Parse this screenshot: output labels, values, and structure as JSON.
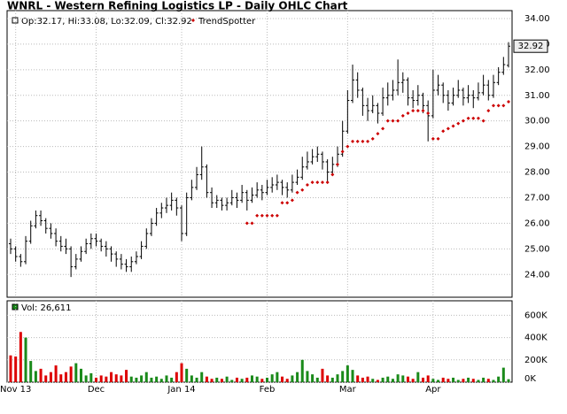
{
  "chart_data": {
    "type": "ohlc",
    "title": "WNRL - Western Refining Logistics LP - Daily OHLC Chart",
    "legend_text": "Op:32.17, Hi:33.08, Lo:32.09, Cl:32.92",
    "volume_text": "Vol: 26,611",
    "grid": true,
    "bar_color": "#000000",
    "categories": [
      null,
      "Nov 13",
      null,
      null,
      null,
      null,
      null,
      null,
      null,
      null,
      null,
      null,
      null,
      null,
      null,
      null,
      null,
      "Dec",
      null,
      null,
      null,
      null,
      null,
      null,
      null,
      null,
      null,
      null,
      null,
      null,
      null,
      null,
      null,
      null,
      "Jan 14",
      null,
      null,
      null,
      null,
      null,
      null,
      null,
      null,
      null,
      null,
      null,
      null,
      null,
      null,
      null,
      null,
      "Feb",
      null,
      null,
      null,
      null,
      null,
      null,
      null,
      null,
      null,
      null,
      null,
      null,
      null,
      null,
      null,
      "Mar",
      null,
      null,
      null,
      null,
      null,
      null,
      null,
      null,
      null,
      null,
      null,
      null,
      null,
      null,
      null,
      null,
      "Apr",
      null,
      null,
      null,
      null,
      null,
      null,
      null,
      null,
      null,
      null,
      null,
      null,
      null,
      null,
      null
    ],
    "ohlc": [
      [
        25.2,
        25.4,
        24.8,
        25.0
      ],
      [
        25.0,
        25.1,
        24.5,
        24.7
      ],
      [
        24.7,
        24.8,
        24.3,
        24.5
      ],
      [
        24.5,
        25.5,
        24.4,
        25.3
      ],
      [
        25.3,
        26.1,
        25.2,
        25.9
      ],
      [
        25.9,
        26.5,
        25.8,
        26.3
      ],
      [
        26.3,
        26.5,
        25.9,
        26.1
      ],
      [
        26.1,
        26.2,
        25.6,
        25.8
      ],
      [
        25.8,
        26.0,
        25.4,
        25.6
      ],
      [
        25.6,
        25.8,
        25.1,
        25.3
      ],
      [
        25.3,
        25.5,
        24.9,
        25.1
      ],
      [
        25.1,
        25.4,
        24.8,
        25.0
      ],
      [
        25.0,
        25.1,
        23.9,
        24.3
      ],
      [
        24.3,
        24.8,
        24.2,
        24.6
      ],
      [
        24.6,
        25.1,
        24.5,
        24.9
      ],
      [
        24.9,
        25.4,
        24.8,
        25.2
      ],
      [
        25.2,
        25.6,
        25.0,
        25.4
      ],
      [
        25.4,
        25.6,
        25.1,
        25.3
      ],
      [
        25.3,
        25.4,
        24.9,
        25.1
      ],
      [
        25.1,
        25.3,
        24.7,
        25.0
      ],
      [
        25.0,
        25.1,
        24.5,
        24.8
      ],
      [
        24.8,
        24.9,
        24.3,
        24.6
      ],
      [
        24.6,
        24.8,
        24.2,
        24.4
      ],
      [
        24.4,
        24.6,
        24.1,
        24.3
      ],
      [
        24.3,
        24.7,
        24.1,
        24.5
      ],
      [
        24.5,
        24.9,
        24.4,
        24.7
      ],
      [
        24.7,
        25.3,
        24.6,
        25.1
      ],
      [
        25.1,
        25.8,
        25.0,
        25.6
      ],
      [
        25.6,
        26.2,
        25.5,
        26.0
      ],
      [
        26.0,
        26.6,
        25.9,
        26.4
      ],
      [
        26.4,
        26.8,
        26.2,
        26.6
      ],
      [
        26.6,
        27.0,
        26.4,
        26.7
      ],
      [
        26.7,
        27.2,
        26.5,
        26.9
      ],
      [
        26.9,
        27.0,
        26.3,
        26.6
      ],
      [
        26.6,
        26.7,
        25.3,
        25.6
      ],
      [
        25.6,
        27.2,
        25.5,
        27.0
      ],
      [
        27.0,
        27.7,
        26.9,
        27.4
      ],
      [
        27.4,
        28.2,
        27.3,
        27.9
      ],
      [
        27.9,
        29.0,
        27.7,
        28.2
      ],
      [
        28.2,
        28.3,
        27.0,
        27.2
      ],
      [
        27.2,
        27.4,
        26.6,
        26.8
      ],
      [
        26.8,
        27.1,
        26.6,
        26.9
      ],
      [
        26.9,
        27.0,
        26.5,
        26.7
      ],
      [
        26.7,
        27.0,
        26.5,
        26.8
      ],
      [
        26.8,
        27.3,
        26.7,
        27.0
      ],
      [
        27.0,
        27.2,
        26.6,
        26.9
      ],
      [
        26.9,
        27.5,
        26.8,
        27.2
      ],
      [
        27.2,
        27.3,
        26.5,
        26.9
      ],
      [
        26.9,
        27.4,
        26.8,
        27.1
      ],
      [
        27.1,
        27.6,
        27.0,
        27.3
      ],
      [
        27.3,
        27.5,
        26.9,
        27.2
      ],
      [
        27.2,
        27.7,
        27.1,
        27.4
      ],
      [
        27.4,
        27.8,
        27.2,
        27.5
      ],
      [
        27.5,
        27.9,
        27.3,
        27.6
      ],
      [
        27.6,
        27.7,
        27.1,
        27.4
      ],
      [
        27.4,
        27.6,
        27.0,
        27.3
      ],
      [
        27.3,
        27.9,
        27.2,
        27.6
      ],
      [
        27.6,
        28.1,
        27.5,
        27.8
      ],
      [
        27.8,
        28.6,
        27.7,
        28.2
      ],
      [
        28.2,
        28.8,
        28.1,
        28.4
      ],
      [
        28.4,
        28.9,
        28.3,
        28.6
      ],
      [
        28.6,
        29.0,
        28.4,
        28.7
      ],
      [
        28.7,
        28.8,
        28.1,
        28.4
      ],
      [
        28.4,
        28.5,
        27.6,
        28.0
      ],
      [
        28.0,
        28.6,
        27.9,
        28.3
      ],
      [
        28.3,
        29.0,
        28.2,
        28.7
      ],
      [
        28.7,
        30.0,
        28.6,
        29.6
      ],
      [
        29.6,
        31.2,
        29.5,
        30.8
      ],
      [
        30.8,
        32.2,
        30.7,
        31.6
      ],
      [
        31.6,
        31.9,
        30.9,
        31.2
      ],
      [
        31.2,
        31.3,
        30.2,
        30.6
      ],
      [
        30.6,
        30.9,
        30.0,
        30.4
      ],
      [
        30.4,
        31.0,
        30.3,
        30.6
      ],
      [
        30.6,
        30.7,
        29.9,
        30.3
      ],
      [
        30.3,
        31.3,
        30.2,
        30.9
      ],
      [
        30.9,
        31.5,
        30.6,
        31.0
      ],
      [
        31.0,
        31.6,
        30.8,
        31.2
      ],
      [
        31.2,
        32.4,
        31.0,
        31.5
      ],
      [
        31.5,
        31.9,
        31.1,
        31.6
      ],
      [
        31.6,
        31.7,
        30.6,
        30.9
      ],
      [
        30.9,
        31.2,
        30.5,
        30.8
      ],
      [
        30.8,
        31.4,
        30.6,
        31.0
      ],
      [
        31.0,
        31.1,
        30.3,
        30.6
      ],
      [
        30.6,
        30.8,
        29.2,
        30.2
      ],
      [
        30.2,
        32.0,
        30.1,
        31.2
      ],
      [
        31.2,
        31.8,
        31.0,
        31.4
      ],
      [
        31.4,
        31.5,
        30.7,
        31.0
      ],
      [
        31.0,
        31.2,
        30.4,
        30.7
      ],
      [
        30.7,
        31.3,
        30.6,
        31.0
      ],
      [
        31.0,
        31.6,
        30.9,
        31.2
      ],
      [
        31.2,
        31.3,
        30.6,
        30.9
      ],
      [
        30.9,
        31.4,
        30.7,
        31.0
      ],
      [
        31.0,
        31.2,
        30.5,
        30.9
      ],
      [
        30.9,
        31.5,
        30.8,
        31.1
      ],
      [
        31.1,
        31.8,
        31.0,
        31.4
      ],
      [
        31.4,
        31.6,
        30.8,
        31.0
      ],
      [
        31.0,
        31.8,
        30.9,
        31.5
      ],
      [
        31.5,
        32.1,
        31.4,
        31.9
      ],
      [
        31.9,
        32.5,
        31.8,
        32.2
      ],
      [
        32.17,
        33.08,
        32.09,
        32.92
      ]
    ],
    "trendspotter": {
      "name": "TrendSpotter",
      "color": "#cc0000",
      "values": [
        null,
        null,
        null,
        null,
        null,
        null,
        null,
        null,
        null,
        null,
        null,
        null,
        null,
        null,
        null,
        null,
        null,
        null,
        null,
        null,
        null,
        null,
        null,
        null,
        null,
        null,
        null,
        null,
        null,
        null,
        null,
        null,
        null,
        null,
        null,
        null,
        null,
        null,
        null,
        null,
        null,
        null,
        null,
        null,
        null,
        null,
        null,
        26.0,
        26.0,
        26.3,
        26.3,
        26.3,
        26.3,
        26.3,
        26.8,
        26.8,
        26.9,
        27.2,
        27.3,
        27.5,
        27.6,
        27.6,
        27.6,
        27.6,
        27.9,
        28.3,
        28.8,
        29.0,
        29.2,
        29.2,
        29.2,
        29.2,
        29.3,
        29.5,
        29.7,
        30.0,
        30.0,
        30.0,
        30.2,
        30.3,
        30.4,
        30.4,
        30.4,
        30.3,
        29.3,
        29.3,
        29.6,
        29.7,
        29.8,
        29.9,
        30.0,
        30.1,
        30.1,
        30.1,
        30.0,
        30.4,
        30.6,
        30.6,
        30.6,
        30.75
      ]
    },
    "volume": {
      "up_color": "#1a8a1a",
      "down_color": "#dd0000",
      "values": [
        240000,
        230000,
        450000,
        400000,
        190000,
        100000,
        120000,
        60000,
        90000,
        150000,
        70000,
        90000,
        140000,
        170000,
        120000,
        60000,
        80000,
        40000,
        60000,
        50000,
        90000,
        70000,
        60000,
        110000,
        50000,
        40000,
        60000,
        90000,
        40000,
        50000,
        30000,
        60000,
        40000,
        90000,
        170000,
        120000,
        60000,
        40000,
        90000,
        50000,
        30000,
        40000,
        30000,
        50000,
        20000,
        40000,
        30000,
        40000,
        60000,
        50000,
        30000,
        40000,
        70000,
        90000,
        50000,
        30000,
        60000,
        90000,
        200000,
        100000,
        70000,
        40000,
        120000,
        60000,
        40000,
        70000,
        100000,
        150000,
        110000,
        60000,
        40000,
        50000,
        30000,
        20000,
        40000,
        50000,
        30000,
        70000,
        60000,
        50000,
        30000,
        90000,
        40000,
        60000,
        30000,
        20000,
        40000,
        30000,
        40000,
        20000,
        30000,
        40000,
        30000,
        20000,
        40000,
        30000,
        20000,
        50000,
        130000,
        26611
      ]
    },
    "ylim": [
      23.11,
      34.31
    ],
    "yticks": [
      {
        "value": 24,
        "label": "24.00"
      },
      {
        "value": 25,
        "label": "25.00"
      },
      {
        "value": 26,
        "label": "26.00"
      },
      {
        "value": 27,
        "label": "27.00"
      },
      {
        "value": 28,
        "label": "28.00"
      },
      {
        "value": 29,
        "label": "29.00"
      },
      {
        "value": 30,
        "label": "30.00"
      },
      {
        "value": 31,
        "label": "31.00"
      },
      {
        "value": 32,
        "label": "32.00"
      },
      {
        "value": 33,
        "label": "33.00"
      },
      {
        "value": 34,
        "label": "34.00"
      }
    ],
    "y2lim": [
      0,
      730000
    ],
    "y2ticks": [
      {
        "value": 0,
        "label": "0K"
      },
      {
        "value": 200000,
        "label": "200K"
      },
      {
        "value": 400000,
        "label": "400K"
      },
      {
        "value": 600000,
        "label": "600K"
      }
    ]
  }
}
